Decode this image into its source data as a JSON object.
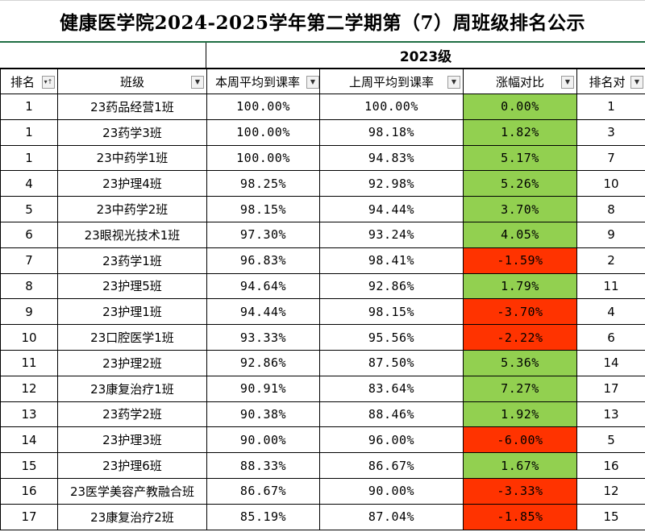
{
  "title": "健康医学院2024-2025学年第二学期第（7）周班级排名公示",
  "grade_label": "2023级",
  "headers": {
    "rank": "排名",
    "class": "班级",
    "this_week": "本周平均到课率",
    "last_week": "上周平均到课率",
    "change": "涨幅对比",
    "prev_rank": "排名对"
  },
  "colors": {
    "increase": "#92d050",
    "decrease": "#ff3300",
    "title_rule": "#1f6e43"
  },
  "icons": {
    "rank_filter": "filter-sort-icon",
    "dropdown": "chevron-down-icon"
  },
  "rows": [
    {
      "rank": "1",
      "class": "23药品经营1班",
      "this_week": "100.00%",
      "last_week": "100.00%",
      "change": "0.00%",
      "prev_rank": "1",
      "trend": "up"
    },
    {
      "rank": "1",
      "class": "23药学3班",
      "this_week": "100.00%",
      "last_week": "98.18%",
      "change": "1.82%",
      "prev_rank": "3",
      "trend": "up"
    },
    {
      "rank": "1",
      "class": "23中药学1班",
      "this_week": "100.00%",
      "last_week": "94.83%",
      "change": "5.17%",
      "prev_rank": "7",
      "trend": "up"
    },
    {
      "rank": "4",
      "class": "23护理4班",
      "this_week": "98.25%",
      "last_week": "92.98%",
      "change": "5.26%",
      "prev_rank": "10",
      "trend": "up"
    },
    {
      "rank": "5",
      "class": "23中药学2班",
      "this_week": "98.15%",
      "last_week": "94.44%",
      "change": "3.70%",
      "prev_rank": "8",
      "trend": "up"
    },
    {
      "rank": "6",
      "class": "23眼视光技术1班",
      "this_week": "97.30%",
      "last_week": "93.24%",
      "change": "4.05%",
      "prev_rank": "9",
      "trend": "up"
    },
    {
      "rank": "7",
      "class": "23药学1班",
      "this_week": "96.83%",
      "last_week": "98.41%",
      "change": "-1.59%",
      "prev_rank": "2",
      "trend": "down"
    },
    {
      "rank": "8",
      "class": "23护理5班",
      "this_week": "94.64%",
      "last_week": "92.86%",
      "change": "1.79%",
      "prev_rank": "11",
      "trend": "up"
    },
    {
      "rank": "9",
      "class": "23护理1班",
      "this_week": "94.44%",
      "last_week": "98.15%",
      "change": "-3.70%",
      "prev_rank": "4",
      "trend": "down"
    },
    {
      "rank": "10",
      "class": "23口腔医学1班",
      "this_week": "93.33%",
      "last_week": "95.56%",
      "change": "-2.22%",
      "prev_rank": "6",
      "trend": "down"
    },
    {
      "rank": "11",
      "class": "23护理2班",
      "this_week": "92.86%",
      "last_week": "87.50%",
      "change": "5.36%",
      "prev_rank": "14",
      "trend": "up"
    },
    {
      "rank": "12",
      "class": "23康复治疗1班",
      "this_week": "90.91%",
      "last_week": "83.64%",
      "change": "7.27%",
      "prev_rank": "17",
      "trend": "up"
    },
    {
      "rank": "13",
      "class": "23药学2班",
      "this_week": "90.38%",
      "last_week": "88.46%",
      "change": "1.92%",
      "prev_rank": "13",
      "trend": "up"
    },
    {
      "rank": "14",
      "class": "23护理3班",
      "this_week": "90.00%",
      "last_week": "96.00%",
      "change": "-6.00%",
      "prev_rank": "5",
      "trend": "down"
    },
    {
      "rank": "15",
      "class": "23护理6班",
      "this_week": "88.33%",
      "last_week": "86.67%",
      "change": "1.67%",
      "prev_rank": "16",
      "trend": "up"
    },
    {
      "rank": "16",
      "class": "23医学美容产教融合班",
      "this_week": "86.67%",
      "last_week": "90.00%",
      "change": "-3.33%",
      "prev_rank": "12",
      "trend": "down"
    },
    {
      "rank": "17",
      "class": "23康复治疗2班",
      "this_week": "85.19%",
      "last_week": "87.04%",
      "change": "-1.85%",
      "prev_rank": "15",
      "trend": "down"
    }
  ]
}
